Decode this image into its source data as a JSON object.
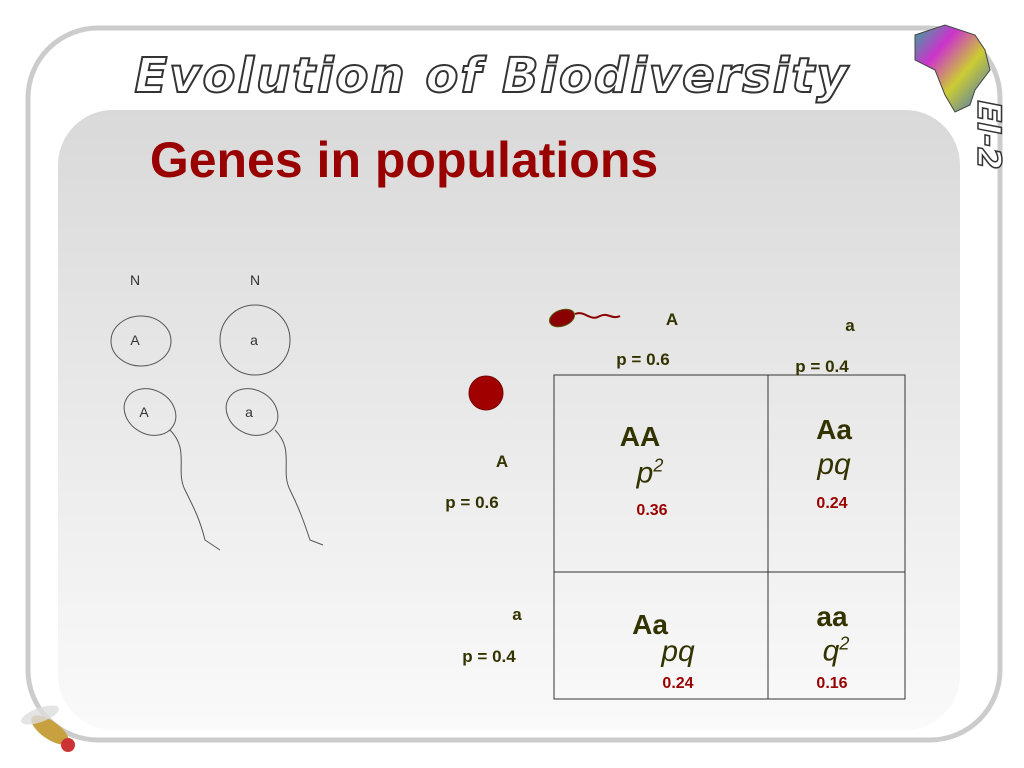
{
  "header": {
    "title": "Evolution of Biodiversity",
    "badge": "EI-2"
  },
  "slide": {
    "title": "Genes in populations"
  },
  "cells": {
    "labels": [
      "N",
      "N"
    ],
    "nucleus_alleles": [
      "A",
      "a"
    ],
    "sperm_alleles": [
      "A",
      "a"
    ]
  },
  "sperm_columns": [
    {
      "allele": "A",
      "freq": "p = 0.6"
    },
    {
      "allele": "a",
      "freq": "p = 0.4"
    }
  ],
  "egg_rows": [
    {
      "allele": "A",
      "freq": "p = 0.6"
    },
    {
      "allele": "a",
      "freq": "p = 0.4"
    }
  ],
  "punnett": [
    [
      {
        "genotype": "AA",
        "symbol": "p",
        "exponent": "2",
        "value": "0.36"
      },
      {
        "genotype": "Aa",
        "symbol": "pq",
        "value": "0.24"
      }
    ],
    [
      {
        "genotype": "Aa",
        "symbol": "pq",
        "value": "0.24"
      },
      {
        "genotype": "aa",
        "symbol": "q",
        "exponent": "2",
        "value": "0.16"
      }
    ]
  ]
}
